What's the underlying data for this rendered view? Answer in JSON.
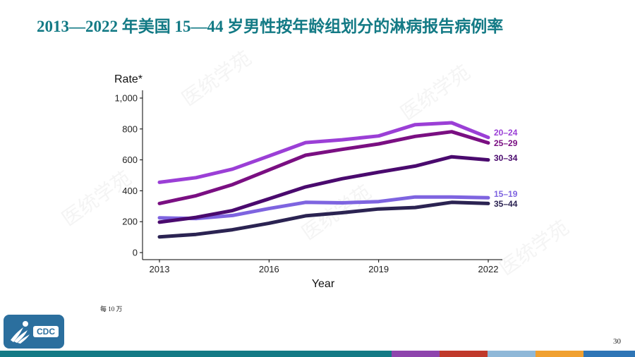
{
  "slide": {
    "title": "2013—2022 年美国 15—44 岁男性按年龄组划分的淋病报告病例率",
    "footnote": "每 10 万",
    "page_number": "30",
    "logo_text": "CDC",
    "watermark_text": "医统学苑"
  },
  "colors": {
    "title": "#137a85",
    "footer": [
      "#137a85",
      "#137a85",
      "#8e44ad",
      "#c0392b",
      "#8fb8d8",
      "#f0a030",
      "#2e75b6"
    ]
  },
  "chart_data": {
    "type": "line",
    "title": "",
    "xlabel": "Year",
    "ylabel": "Rate*",
    "xlim": [
      2013,
      2022
    ],
    "ylim": [
      0,
      1000
    ],
    "x": [
      2013,
      2014,
      2015,
      2016,
      2017,
      2018,
      2019,
      2020,
      2021,
      2022
    ],
    "x_ticks": [
      2013,
      2016,
      2019,
      2022
    ],
    "x_tick_labels": [
      "2013",
      "2016",
      "2019",
      "2022"
    ],
    "y_ticks": [
      0,
      200,
      400,
      600,
      800,
      1000
    ],
    "y_tick_labels": [
      "0",
      "200",
      "400",
      "600",
      "800",
      "1,000"
    ],
    "grid": false,
    "series": [
      {
        "name": "20–24",
        "color": "#9b3fd6",
        "values": [
          455,
          485,
          540,
          625,
          712,
          730,
          755,
          828,
          840,
          745
        ]
      },
      {
        "name": "25–29",
        "color": "#7a0f82",
        "values": [
          318,
          368,
          440,
          535,
          630,
          668,
          703,
          752,
          782,
          710
        ]
      },
      {
        "name": "30–34",
        "color": "#4a0a6e",
        "values": [
          197,
          228,
          272,
          348,
          425,
          478,
          520,
          560,
          620,
          600
        ]
      },
      {
        "name": "15–19",
        "color": "#7e64e0",
        "values": [
          225,
          220,
          240,
          285,
          325,
          322,
          330,
          360,
          360,
          355
        ]
      },
      {
        "name": "35–44",
        "color": "#2b2352",
        "values": [
          102,
          118,
          148,
          190,
          238,
          258,
          282,
          292,
          325,
          318
        ]
      }
    ]
  }
}
